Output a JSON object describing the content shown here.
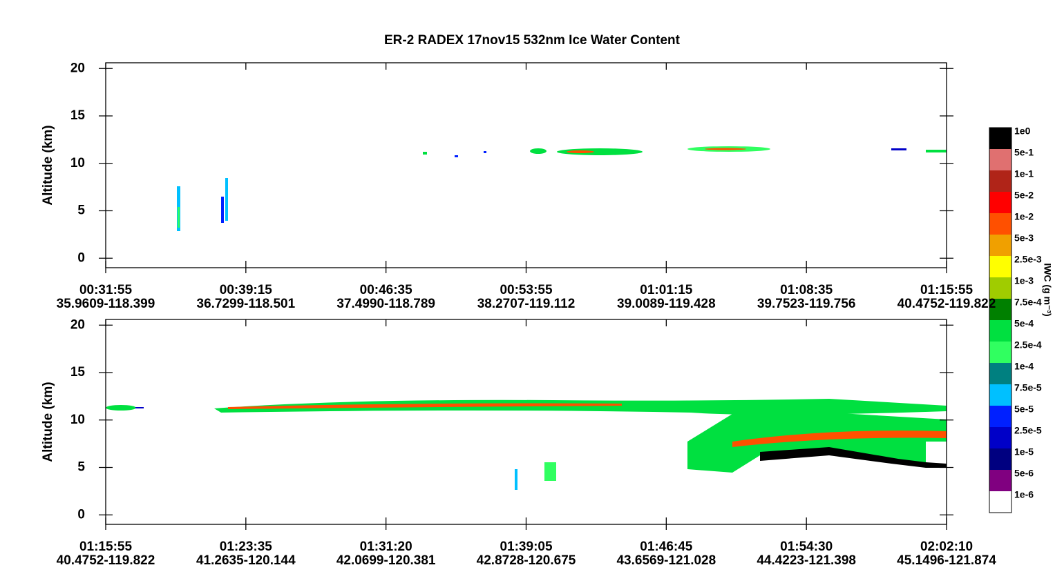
{
  "title": "ER-2  RADEX  17nov15  532nm Ice Water Content",
  "chart_data": [
    {
      "type": "curtain",
      "ylabel": "Altitude (km)",
      "ylim": [
        -1,
        20.6
      ],
      "yticks": [
        0,
        5,
        10,
        15,
        20
      ],
      "xticks": [
        "00:31:55",
        "00:39:15",
        "00:46:35",
        "00:53:55",
        "01:01:15",
        "01:08:35",
        "01:15:55"
      ],
      "xtick_locations": [
        "35.9609-118.399",
        "36.7299-118.501",
        "37.4990-118.789",
        "38.2707-119.112",
        "39.0089-119.428",
        "39.7523-119.756",
        "40.4752-119.822"
      ]
    },
    {
      "type": "curtain",
      "ylabel": "Altitude (km)",
      "ylim": [
        -1,
        20.6
      ],
      "yticks": [
        0,
        5,
        10,
        15,
        20
      ],
      "xticks": [
        "01:15:55",
        "01:23:35",
        "01:31:20",
        "01:39:05",
        "01:46:45",
        "01:54:30",
        "02:02:10"
      ],
      "xtick_locations": [
        "40.4752-119.822",
        "41.2635-120.144",
        "42.0699-120.381",
        "42.8728-120.675",
        "43.6569-121.028",
        "44.4223-121.398",
        "45.1496-121.874"
      ]
    }
  ],
  "colorbar": {
    "label": "IWC (g m⁻³)",
    "levels": [
      {
        "label": "1e0",
        "color": "#000000"
      },
      {
        "label": "5e-1",
        "color": "#e07070"
      },
      {
        "label": "1e-1",
        "color": "#b02418"
      },
      {
        "label": "5e-2",
        "color": "#ff0000"
      },
      {
        "label": "1e-2",
        "color": "#ff5000"
      },
      {
        "label": "5e-3",
        "color": "#f0a000"
      },
      {
        "label": "2.5e-3",
        "color": "#ffff00"
      },
      {
        "label": "1e-3",
        "color": "#a0cc00"
      },
      {
        "label": "7.5e-4",
        "color": "#008000"
      },
      {
        "label": "5e-4",
        "color": "#00e040"
      },
      {
        "label": "2.5e-4",
        "color": "#30ff60"
      },
      {
        "label": "1e-4",
        "color": "#008080"
      },
      {
        "label": "7.5e-5",
        "color": "#00c0ff"
      },
      {
        "label": "5e-5",
        "color": "#0020ff"
      },
      {
        "label": "2.5e-5",
        "color": "#0000c8"
      },
      {
        "label": "1e-5",
        "color": "#000080"
      },
      {
        "label": "5e-6",
        "color": "#800080"
      },
      {
        "label": "1e-6",
        "color": "#ffffff"
      }
    ]
  }
}
